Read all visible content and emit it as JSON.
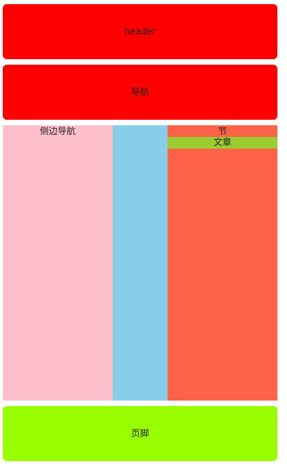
{
  "layout": {
    "header": {
      "label": "header"
    },
    "nav": {
      "label": "导航"
    },
    "content": {
      "sidebar": {
        "label": "侧边导航"
      },
      "section": {
        "label": "节",
        "article": {
          "label": "文章"
        }
      }
    },
    "footer": {
      "label": "页脚"
    }
  },
  "colors": {
    "header_bg": "#ff0000",
    "nav_bg": "#ff0000",
    "sidebar_bg": "#ffc0cb",
    "middle_bg": "#87ceeb",
    "section_bg": "#ff6347",
    "article_bg": "#9acd32",
    "footer_bg": "#99ff00"
  }
}
